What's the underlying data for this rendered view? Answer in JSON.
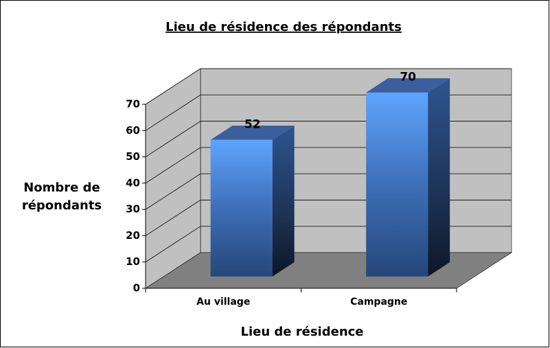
{
  "chart_data": {
    "type": "bar3d",
    "title": "Lieu de résidence des répondants",
    "categories": [
      "Au village",
      "Campagne"
    ],
    "values": [
      52,
      70
    ],
    "xlabel": "Lieu de résidence",
    "ylabel": [
      "Nombre de",
      "répondants"
    ],
    "ylim": [
      0,
      70
    ],
    "yticks": [
      0,
      10,
      20,
      30,
      40,
      50,
      60,
      70
    ],
    "grid": true,
    "color": "#4f86d6"
  }
}
